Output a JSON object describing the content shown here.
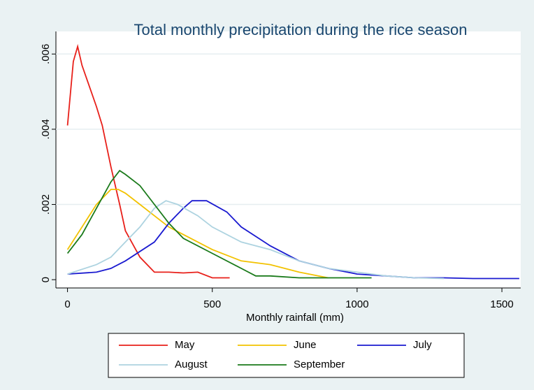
{
  "chart_data": {
    "type": "line",
    "title": "Total monthly precipitation during the rice season",
    "x_label": "Monthly rainfall (mm)",
    "xlim": [
      -40,
      1565
    ],
    "xticks": [
      0,
      500,
      1000,
      1500
    ],
    "ylim": [
      -0.00022,
      0.0066
    ],
    "yticks": [
      0,
      {
        "value": 0.002,
        "label": ".002"
      },
      {
        "value": 0.004,
        "label": ".004"
      },
      {
        "value": 0.006,
        "label": ".006"
      }
    ],
    "grid": true,
    "legend": "bottom",
    "series": [
      {
        "name": "May",
        "color": "#e8201a",
        "x": [
          0,
          20,
          35,
          50,
          100,
          120,
          150,
          180,
          200,
          250,
          300,
          350,
          400,
          450,
          500,
          560
        ],
        "values": [
          0.0041,
          0.0058,
          0.0062,
          0.0057,
          0.0046,
          0.0041,
          0.003,
          0.002,
          0.0013,
          0.0006,
          0.0002,
          0.0002,
          0.00018,
          0.0002,
          5e-05,
          5e-05
        ]
      },
      {
        "name": "June",
        "color": "#f2c200",
        "x": [
          0,
          50,
          100,
          150,
          175,
          200,
          250,
          300,
          350,
          400,
          500,
          600,
          700,
          800,
          900
        ],
        "values": [
          0.0008,
          0.0014,
          0.002,
          0.0024,
          0.0024,
          0.0023,
          0.002,
          0.0017,
          0.0014,
          0.0012,
          0.0008,
          0.0005,
          0.0004,
          0.0002,
          5e-05
        ]
      },
      {
        "name": "July",
        "color": "#1a1ad0",
        "x": [
          0,
          100,
          150,
          200,
          300,
          350,
          400,
          430,
          480,
          550,
          600,
          700,
          800,
          900,
          1000,
          1100,
          1200,
          1300,
          1400,
          1560
        ],
        "values": [
          0.00015,
          0.0002,
          0.0003,
          0.0005,
          0.001,
          0.0015,
          0.0019,
          0.0021,
          0.0021,
          0.0018,
          0.0014,
          0.0009,
          0.0005,
          0.0003,
          0.00015,
          0.0001,
          5e-05,
          5e-05,
          3e-05,
          3e-05
        ]
      },
      {
        "name": "August",
        "color": "#add3e0",
        "x": [
          0,
          100,
          150,
          200,
          250,
          300,
          340,
          380,
          450,
          500,
          600,
          700,
          800,
          900,
          1000,
          1100,
          1200,
          1300
        ],
        "values": [
          0.00015,
          0.0004,
          0.0006,
          0.001,
          0.0014,
          0.0019,
          0.0021,
          0.002,
          0.0017,
          0.0014,
          0.001,
          0.0008,
          0.0005,
          0.0003,
          0.0002,
          0.0001,
          5e-05,
          3e-05
        ]
      },
      {
        "name": "September",
        "color": "#1a7a1a",
        "x": [
          0,
          50,
          100,
          150,
          180,
          200,
          250,
          300,
          350,
          400,
          500,
          600,
          650,
          700,
          800,
          1050
        ],
        "values": [
          0.0007,
          0.0012,
          0.0019,
          0.0026,
          0.0029,
          0.0028,
          0.0025,
          0.002,
          0.0015,
          0.0011,
          0.0007,
          0.0003,
          0.0001,
          0.0001,
          5e-05,
          5e-05
        ]
      }
    ]
  }
}
